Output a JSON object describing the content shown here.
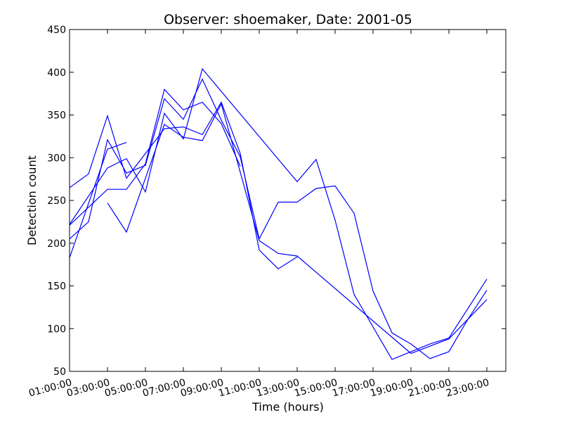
{
  "chart_data": {
    "type": "line",
    "title": "Observer: shoemaker, Date: 2001-05",
    "xlabel": "Time (hours)",
    "ylabel": "Detection count",
    "xlim": [
      1,
      24
    ],
    "ylim": [
      50,
      450
    ],
    "x_ticks": [
      {
        "value": 1,
        "label": "01:00:00"
      },
      {
        "value": 3,
        "label": "03:00:00"
      },
      {
        "value": 5,
        "label": "05:00:00"
      },
      {
        "value": 7,
        "label": "07:00:00"
      },
      {
        "value": 9,
        "label": "09:00:00"
      },
      {
        "value": 11,
        "label": "11:00:00"
      },
      {
        "value": 13,
        "label": "13:00:00"
      },
      {
        "value": 15,
        "label": "15:00:00"
      },
      {
        "value": 17,
        "label": "17:00:00"
      },
      {
        "value": 19,
        "label": "19:00:00"
      },
      {
        "value": 21,
        "label": "21:00:00"
      },
      {
        "value": 23,
        "label": "23:00:00"
      }
    ],
    "y_ticks": [
      {
        "value": 50,
        "label": "50"
      },
      {
        "value": 100,
        "label": "100"
      },
      {
        "value": 150,
        "label": "150"
      },
      {
        "value": 200,
        "label": "200"
      },
      {
        "value": 250,
        "label": "250"
      },
      {
        "value": 300,
        "label": "300"
      },
      {
        "value": 350,
        "label": "350"
      },
      {
        "value": 400,
        "label": "400"
      },
      {
        "value": 450,
        "label": "450"
      }
    ],
    "grid": false,
    "line_color": "#0000ff",
    "series": [
      {
        "points": [
          [
            1,
            265
          ],
          [
            2,
            281
          ],
          [
            3,
            349
          ],
          [
            4,
            276
          ],
          [
            5,
            305
          ],
          [
            6,
            334
          ],
          [
            7,
            336
          ],
          [
            8,
            327
          ],
          [
            9,
            365
          ],
          [
            10,
            305
          ],
          [
            11,
            192
          ],
          [
            12,
            170
          ],
          [
            13,
            184
          ]
        ]
      },
      {
        "points": [
          [
            1,
            221
          ],
          [
            3,
            263
          ],
          [
            4,
            263
          ],
          [
            5,
            293
          ],
          [
            6,
            380
          ],
          [
            7,
            356
          ],
          [
            8,
            365
          ],
          [
            9,
            340
          ],
          [
            10,
            290
          ]
        ]
      },
      {
        "points": [
          [
            1,
            205
          ],
          [
            2,
            225
          ],
          [
            3,
            321
          ],
          [
            4,
            282
          ],
          [
            5,
            291
          ],
          [
            6,
            369
          ],
          [
            7,
            345
          ],
          [
            8,
            392
          ],
          [
            9,
            344
          ],
          [
            10,
            301
          ],
          [
            11,
            205
          ],
          [
            12,
            248
          ],
          [
            13,
            248
          ],
          [
            14,
            264
          ],
          [
            15,
            267
          ],
          [
            16,
            235
          ],
          [
            17,
            144
          ],
          [
            18,
            95
          ],
          [
            19,
            82
          ],
          [
            20,
            65
          ],
          [
            21,
            73
          ],
          [
            22,
            111
          ],
          [
            23,
            145
          ]
        ]
      },
      {
        "points": [
          [
            1,
            222
          ],
          [
            3,
            288
          ],
          [
            4,
            299
          ],
          [
            5,
            260
          ],
          [
            6,
            352
          ],
          [
            7,
            322
          ],
          [
            8,
            404
          ],
          [
            13,
            272
          ],
          [
            14,
            298
          ],
          [
            15,
            227
          ],
          [
            16,
            140
          ],
          [
            18,
            64
          ],
          [
            20,
            82
          ],
          [
            21,
            89
          ],
          [
            23,
            158
          ]
        ]
      },
      {
        "points": [
          [
            1,
            183
          ],
          [
            3,
            310
          ],
          [
            4,
            318
          ]
        ]
      },
      {
        "points": [
          [
            3,
            247
          ],
          [
            4,
            213
          ],
          [
            6,
            339
          ],
          [
            7,
            324
          ],
          [
            8,
            320
          ],
          [
            9,
            363
          ],
          [
            11,
            203
          ],
          [
            12,
            188
          ],
          [
            13,
            185
          ],
          [
            19,
            71
          ],
          [
            21,
            88
          ],
          [
            23,
            134
          ]
        ]
      }
    ]
  }
}
